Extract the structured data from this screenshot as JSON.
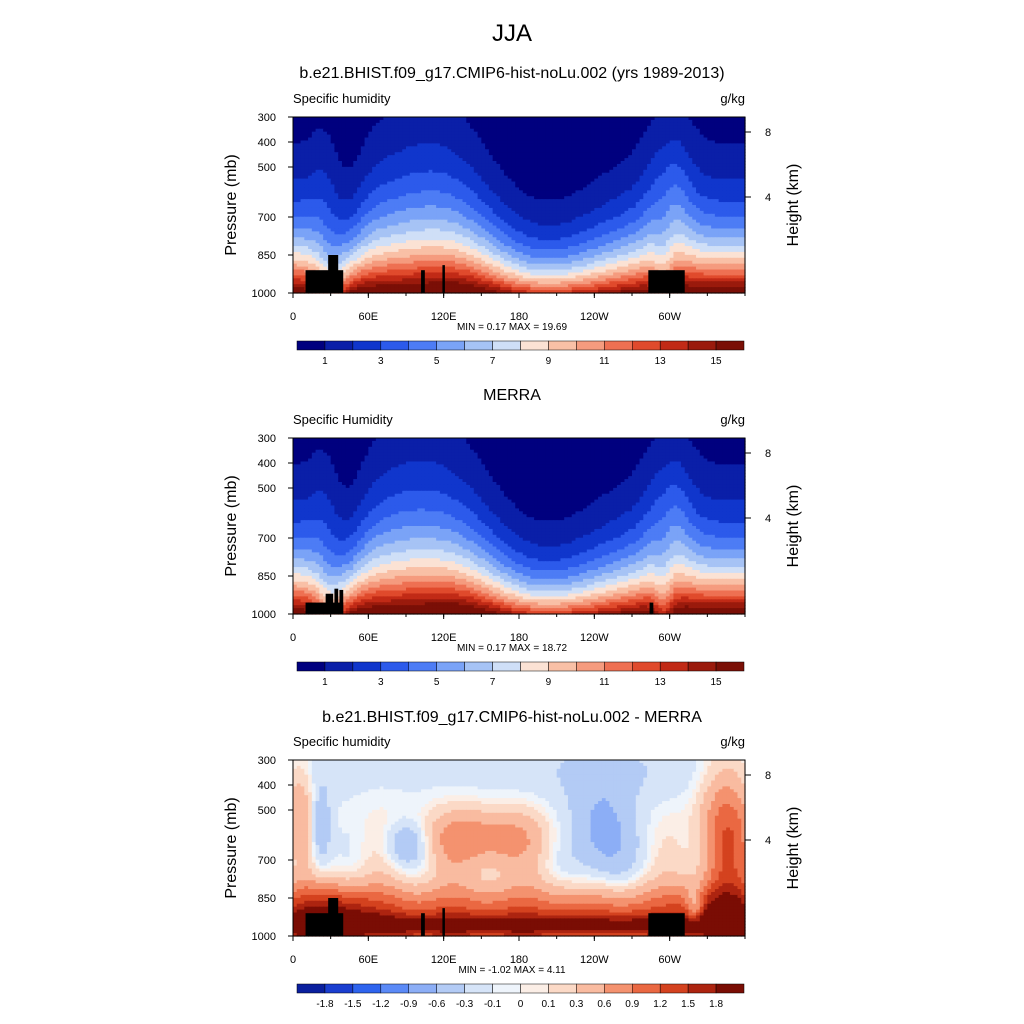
{
  "figure_title": "JJA",
  "chart_data": [
    {
      "type": "heatmap",
      "title": "b.e21.BHIST.f09_g17.CMIP6-hist-noLu.002 (yrs 1989-2013)",
      "left_label": "Specific humidity",
      "right_label": "g/kg",
      "ylabel": "Pressure (mb)",
      "ylabel_right": "Height (km)",
      "xticks": [
        "0",
        "60E",
        "120E",
        "180",
        "120W",
        "60W"
      ],
      "yticks": [
        "300",
        "400",
        "500",
        "700",
        "850",
        "1000"
      ],
      "yticks_right": [
        "8",
        "4"
      ],
      "ylim": [
        1000,
        300
      ],
      "xlim": [
        0,
        360
      ],
      "minmax_text": "MIN =   0.17  MAX =  19.69",
      "min": 0.17,
      "max": 19.69,
      "colorbar_labels": [
        "1",
        "3",
        "5",
        "7",
        "9",
        "11",
        "13",
        "15"
      ]
    },
    {
      "type": "heatmap",
      "title": "MERRA",
      "left_label": "Specific Humidity",
      "right_label": "g/kg",
      "ylabel": "Pressure (mb)",
      "ylabel_right": "Height (km)",
      "xticks": [
        "0",
        "60E",
        "120E",
        "180",
        "120W",
        "60W"
      ],
      "yticks": [
        "300",
        "400",
        "500",
        "700",
        "850",
        "1000"
      ],
      "yticks_right": [
        "8",
        "4"
      ],
      "ylim": [
        1000,
        300
      ],
      "xlim": [
        0,
        360
      ],
      "minmax_text": "MIN =   0.17  MAX =  18.72",
      "min": 0.17,
      "max": 18.72,
      "colorbar_labels": [
        "1",
        "3",
        "5",
        "7",
        "9",
        "11",
        "13",
        "15"
      ]
    },
    {
      "type": "heatmap",
      "title": "b.e21.BHIST.f09_g17.CMIP6-hist-noLu.002 - MERRA",
      "left_label": "Specific humidity",
      "right_label": "g/kg",
      "ylabel": "Pressure (mb)",
      "ylabel_right": "Height (km)",
      "xticks": [
        "0",
        "60E",
        "120E",
        "180",
        "120W",
        "60W"
      ],
      "yticks": [
        "300",
        "400",
        "500",
        "700",
        "850",
        "1000"
      ],
      "yticks_right": [
        "8",
        "4"
      ],
      "ylim": [
        1000,
        300
      ],
      "xlim": [
        0,
        360
      ],
      "minmax_text": "MIN =  -1.02  MAX =   4.11",
      "min": -1.02,
      "max": 4.11,
      "colorbar_labels": [
        "-1.8",
        "-1.5",
        "-1.2",
        "-0.9",
        "-0.6",
        "-0.3",
        "-0.1",
        "0",
        "0.1",
        "0.3",
        "0.6",
        "0.9",
        "1.2",
        "1.5",
        "1.8"
      ]
    }
  ],
  "palette": [
    "#00007f",
    "#0a1fa8",
    "#1036cc",
    "#2c5aeb",
    "#4d7cf5",
    "#7aa3f7",
    "#a6c3f5",
    "#cfdff7",
    "#fbe2d4",
    "#f9c0a6",
    "#f59b7e",
    "#ee7052",
    "#e04a2c",
    "#c12a16",
    "#9a1a0c",
    "#7a0f06"
  ],
  "diff_palette": [
    "#0a1f9e",
    "#1a3ed0",
    "#2e64ee",
    "#5b8af7",
    "#8caef6",
    "#b3cbf5",
    "#d6e4f8",
    "#eef4fb",
    "#fbeee6",
    "#fbd9c6",
    "#f9bba0",
    "#f4926f",
    "#ea6842",
    "#d4421f",
    "#ad2410",
    "#7a0d04"
  ]
}
